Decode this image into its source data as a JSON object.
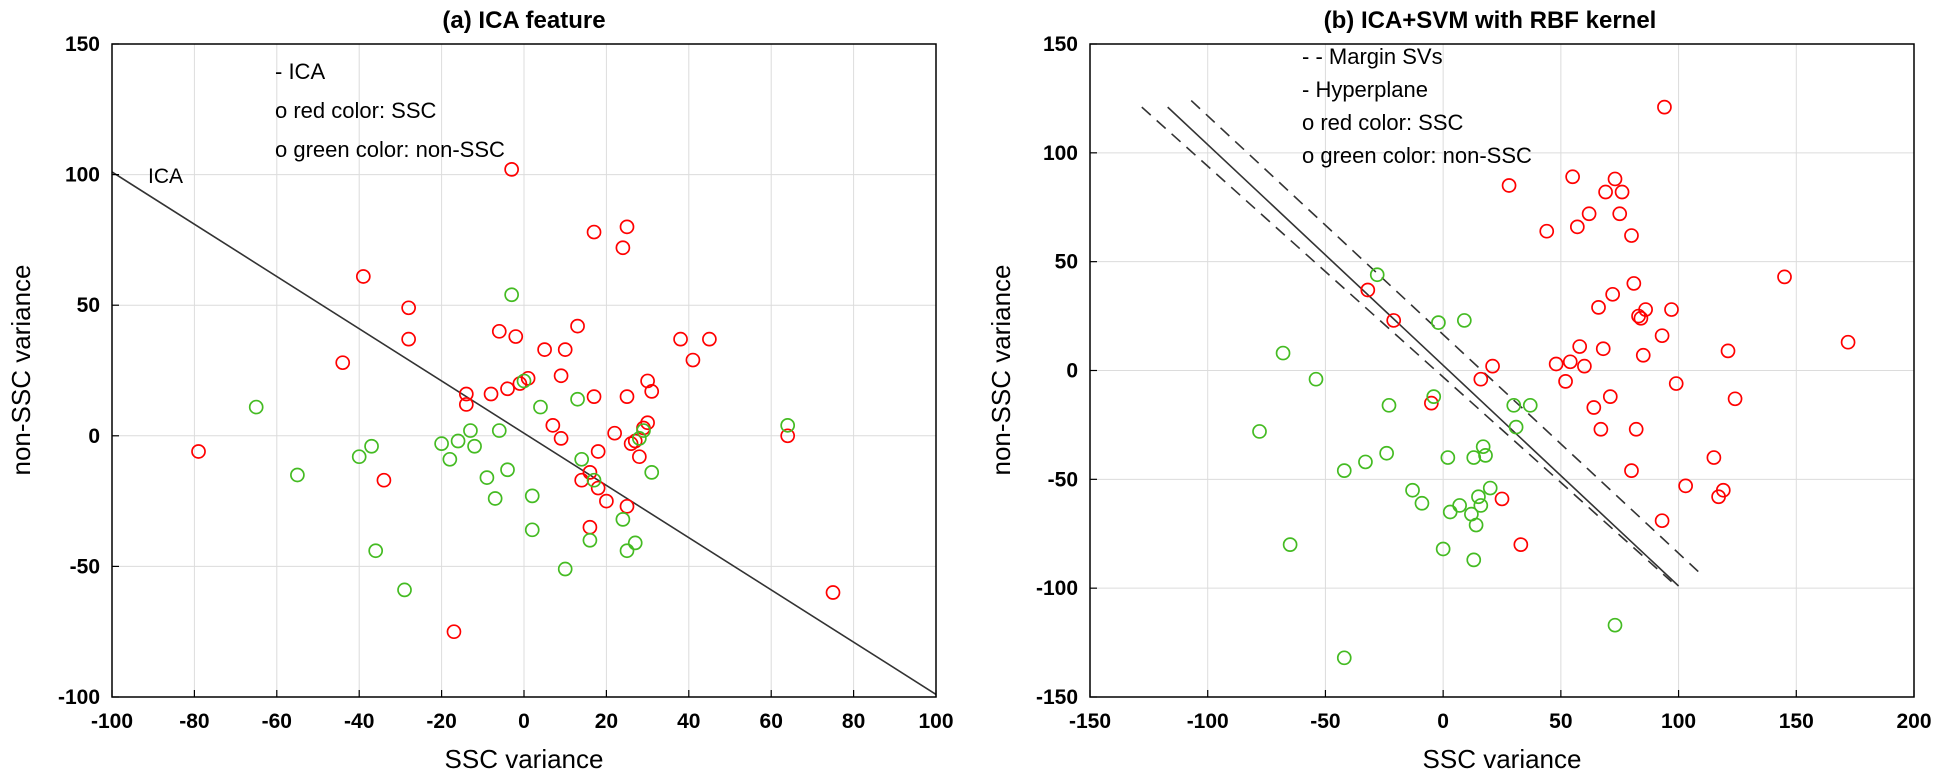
{
  "chart_data": [
    {
      "id": "a",
      "type": "scatter",
      "title": "(a) ICA feature",
      "xlabel": "SSC variance",
      "ylabel": "non-SSC variance",
      "xlim": [
        -100,
        100
      ],
      "ylim": [
        -100,
        150
      ],
      "xticks": [
        -100,
        -80,
        -60,
        -40,
        -20,
        0,
        20,
        40,
        60,
        80,
        100
      ],
      "yticks": [
        -100,
        -50,
        0,
        50,
        100,
        150
      ],
      "grid": true,
      "legend": [
        "- ICA",
        "o red color: SSC",
        "o green color: non-SSC"
      ],
      "line_annotation": "ICA",
      "lines": [
        {
          "name": "ICA",
          "style": "solid",
          "points": [
            [
              -100,
              101
            ],
            [
              100,
              -99
            ]
          ]
        }
      ],
      "series": [
        {
          "name": "SSC",
          "color": "#ff0000",
          "points": [
            [
              -79,
              -6
            ],
            [
              -44,
              28
            ],
            [
              -39,
              61
            ],
            [
              -34,
              -17
            ],
            [
              -28,
              49
            ],
            [
              -28,
              37
            ],
            [
              -17,
              -75
            ],
            [
              -14,
              16
            ],
            [
              -14,
              12
            ],
            [
              -8,
              16
            ],
            [
              -6,
              40
            ],
            [
              -4,
              18
            ],
            [
              -3,
              102
            ],
            [
              -2,
              38
            ],
            [
              -1,
              20
            ],
            [
              1,
              22
            ],
            [
              5,
              33
            ],
            [
              7,
              4
            ],
            [
              9,
              -1
            ],
            [
              9,
              23
            ],
            [
              10,
              33
            ],
            [
              13,
              42
            ],
            [
              14,
              -17
            ],
            [
              16,
              -35
            ],
            [
              16,
              -14
            ],
            [
              17,
              78
            ],
            [
              17,
              15
            ],
            [
              18,
              -6
            ],
            [
              18,
              -20
            ],
            [
              20,
              -25
            ],
            [
              22,
              1
            ],
            [
              24,
              72
            ],
            [
              25,
              80
            ],
            [
              25,
              -27
            ],
            [
              25,
              15
            ],
            [
              26,
              -3
            ],
            [
              27,
              -2
            ],
            [
              28,
              -8
            ],
            [
              29,
              3
            ],
            [
              30,
              5
            ],
            [
              30,
              21
            ],
            [
              31,
              17
            ],
            [
              38,
              37
            ],
            [
              41,
              29
            ],
            [
              45,
              37
            ],
            [
              64,
              0
            ],
            [
              75,
              -60
            ]
          ]
        },
        {
          "name": "non-SSC",
          "color": "#44bb22",
          "points": [
            [
              -65,
              11
            ],
            [
              -55,
              -15
            ],
            [
              -40,
              -8
            ],
            [
              -37,
              -4
            ],
            [
              -36,
              -44
            ],
            [
              -29,
              -59
            ],
            [
              -20,
              -3
            ],
            [
              -18,
              -9
            ],
            [
              -16,
              -2
            ],
            [
              -13,
              2
            ],
            [
              -12,
              -4
            ],
            [
              -9,
              -16
            ],
            [
              -7,
              -24
            ],
            [
              -6,
              2
            ],
            [
              -4,
              -13
            ],
            [
              -3,
              54
            ],
            [
              0,
              21
            ],
            [
              2,
              -23
            ],
            [
              2,
              -36
            ],
            [
              4,
              11
            ],
            [
              10,
              -51
            ],
            [
              13,
              14
            ],
            [
              14,
              -9
            ],
            [
              16,
              -40
            ],
            [
              17,
              -17
            ],
            [
              24,
              -32
            ],
            [
              25,
              -44
            ],
            [
              27,
              -41
            ],
            [
              28,
              -1
            ],
            [
              29,
              2
            ],
            [
              31,
              -14
            ],
            [
              64,
              4
            ]
          ]
        }
      ]
    },
    {
      "id": "b",
      "type": "scatter",
      "title": "(b) ICA+SVM with RBF kernel",
      "xlabel": "SSC variance",
      "ylabel": "non-SSC variance",
      "xlim": [
        -150,
        200
      ],
      "ylim": [
        -150,
        150
      ],
      "xticks": [
        -150,
        -100,
        -50,
        0,
        50,
        100,
        150,
        200
      ],
      "yticks": [
        -150,
        -100,
        -50,
        0,
        50,
        100,
        150
      ],
      "grid": true,
      "legend": [
        "- - Margin SVs",
        "-  Hyperplane",
        "o  red color: SSC",
        "o  green color: non-SSC"
      ],
      "lines": [
        {
          "name": "Hyperplane",
          "style": "solid",
          "points": [
            [
              -117,
              121
            ],
            [
              100,
              -99
            ]
          ]
        },
        {
          "name": "Margin SV upper",
          "style": "dashed",
          "points": [
            [
              -107,
              124
            ],
            [
              110,
              -94
            ]
          ]
        },
        {
          "name": "Margin SV lower",
          "style": "dashed",
          "points": [
            [
              -128,
              121
            ],
            [
              97,
              -97
            ]
          ]
        }
      ],
      "series": [
        {
          "name": "SSC",
          "color": "#ff0000",
          "points": [
            [
              -32,
              37
            ],
            [
              -21,
              23
            ],
            [
              -5,
              -15
            ],
            [
              16,
              -4
            ],
            [
              21,
              2
            ],
            [
              25,
              -59
            ],
            [
              28,
              85
            ],
            [
              33,
              -80
            ],
            [
              44,
              64
            ],
            [
              48,
              3
            ],
            [
              52,
              -5
            ],
            [
              54,
              4
            ],
            [
              55,
              89
            ],
            [
              57,
              66
            ],
            [
              58,
              11
            ],
            [
              60,
              2
            ],
            [
              62,
              72
            ],
            [
              64,
              -17
            ],
            [
              66,
              29
            ],
            [
              67,
              -27
            ],
            [
              68,
              10
            ],
            [
              69,
              82
            ],
            [
              71,
              -12
            ],
            [
              72,
              35
            ],
            [
              73,
              88
            ],
            [
              75,
              72
            ],
            [
              76,
              82
            ],
            [
              80,
              62
            ],
            [
              80,
              -46
            ],
            [
              81,
              40
            ],
            [
              82,
              -27
            ],
            [
              83,
              25
            ],
            [
              84,
              24
            ],
            [
              85,
              7
            ],
            [
              86,
              28
            ],
            [
              93,
              -69
            ],
            [
              93,
              16
            ],
            [
              97,
              28
            ],
            [
              99,
              -6
            ],
            [
              103,
              -53
            ],
            [
              115,
              -40
            ],
            [
              117,
              -58
            ],
            [
              119,
              -55
            ],
            [
              121,
              9
            ],
            [
              124,
              -13
            ],
            [
              145,
              43
            ],
            [
              172,
              13
            ],
            [
              94,
              121
            ]
          ]
        },
        {
          "name": "non-SSC",
          "color": "#44bb22",
          "points": [
            [
              -78,
              -28
            ],
            [
              -68,
              8
            ],
            [
              -65,
              -80
            ],
            [
              -54,
              -4
            ],
            [
              -42,
              -46
            ],
            [
              -42,
              -132
            ],
            [
              -33,
              -42
            ],
            [
              -28,
              44
            ],
            [
              -24,
              -38
            ],
            [
              -23,
              -16
            ],
            [
              -13,
              -55
            ],
            [
              -9,
              -61
            ],
            [
              -4,
              -12
            ],
            [
              -2,
              22
            ],
            [
              0,
              -82
            ],
            [
              2,
              -40
            ],
            [
              3,
              -65
            ],
            [
              7,
              -62
            ],
            [
              9,
              23
            ],
            [
              12,
              -66
            ],
            [
              13,
              -40
            ],
            [
              13,
              -87
            ],
            [
              14,
              -71
            ],
            [
              15,
              -58
            ],
            [
              16,
              -62
            ],
            [
              17,
              -35
            ],
            [
              18,
              -39
            ],
            [
              20,
              -54
            ],
            [
              30,
              -16
            ],
            [
              31,
              -26
            ],
            [
              37,
              -16
            ],
            [
              73,
              -117
            ]
          ]
        }
      ]
    }
  ]
}
